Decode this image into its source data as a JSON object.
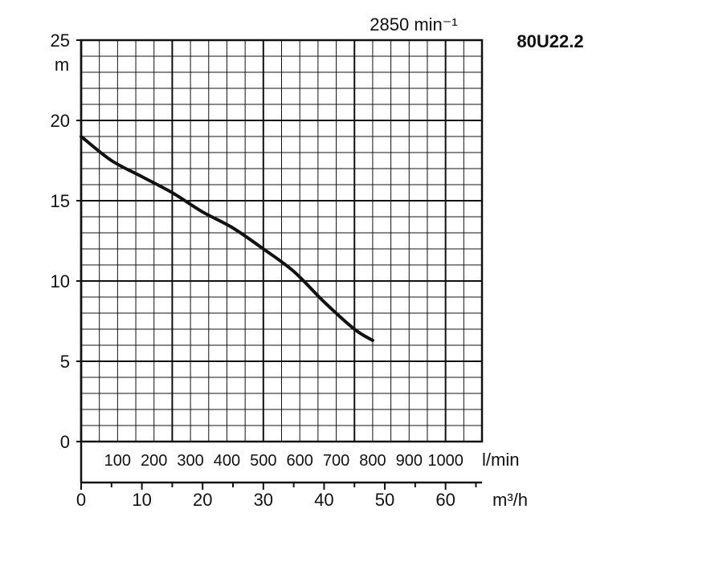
{
  "chart_data": {
    "type": "line",
    "title": "80U22.2",
    "subtitle": "2850 min⁻¹",
    "ylabel": "m",
    "ylim": [
      0,
      25
    ],
    "yticks": [
      "0",
      "5",
      "10",
      "15",
      "20",
      "25"
    ],
    "x_lpm": {
      "unit": "l/min",
      "ticks": [
        "100",
        "200",
        "300",
        "400",
        "500",
        "600",
        "700",
        "800",
        "900",
        "1000"
      ]
    },
    "x_m3h": {
      "unit": "m³/h",
      "ticks": [
        "0",
        "10",
        "20",
        "30",
        "40",
        "50",
        "60"
      ],
      "xlim": [
        0,
        66
      ]
    },
    "grid": true,
    "series": [
      {
        "x": [
          0,
          5,
          10,
          15,
          20,
          25,
          30,
          35,
          40,
          45,
          48
        ],
        "y": [
          19.0,
          17.5,
          16.5,
          15.5,
          14.3,
          13.3,
          12.0,
          10.6,
          8.7,
          7.0,
          6.3
        ]
      }
    ]
  }
}
